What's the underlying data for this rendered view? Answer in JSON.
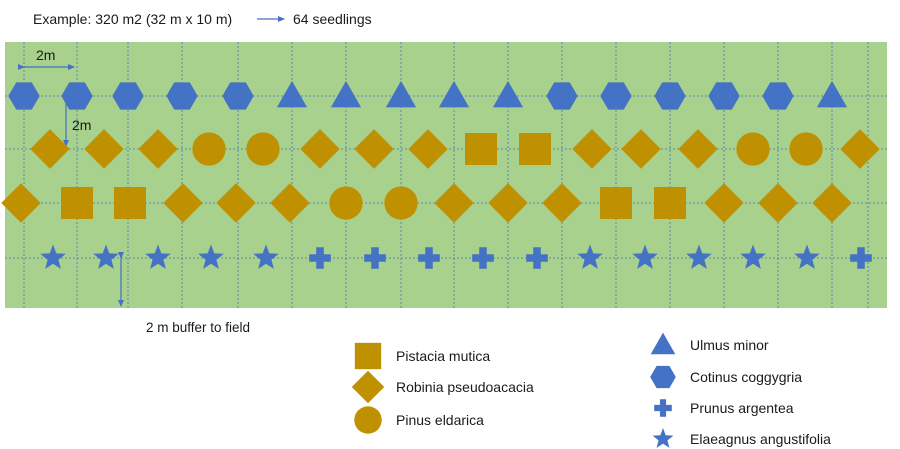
{
  "header": {
    "example_text": "Example: 320 m2 (32 m x 10 m)",
    "result_text": "64 seedlings"
  },
  "annotations": {
    "spacing_h": "2m",
    "spacing_v": "2m",
    "buffer": "2 m buffer to field"
  },
  "colors": {
    "field": "#a9d18e",
    "grid": "#4472c4",
    "blue": "#4472c4",
    "gold": "#bf9000"
  },
  "rows": [
    [
      "hexagon",
      "hexagon",
      "hexagon",
      "hexagon",
      "hexagon",
      "triangle",
      "triangle",
      "triangle",
      "triangle",
      "triangle",
      "hexagon",
      "hexagon",
      "hexagon",
      "hexagon",
      "hexagon",
      "triangle"
    ],
    [
      "diamond",
      "diamond",
      "diamond",
      "circle",
      "circle",
      "diamond",
      "diamond",
      "diamond",
      "square",
      "square",
      "diamond",
      "diamond",
      "diamond",
      "circle",
      "circle",
      "diamond"
    ],
    [
      "diamond",
      "square",
      "square",
      "diamond",
      "diamond",
      "diamond",
      "circle",
      "circle",
      "diamond",
      "diamond",
      "diamond",
      "square",
      "square",
      "diamond",
      "diamond",
      "diamond"
    ],
    [
      "star",
      "star",
      "star",
      "star",
      "star",
      "cross",
      "cross",
      "cross",
      "cross",
      "cross",
      "star",
      "star",
      "star",
      "star",
      "star",
      "cross"
    ]
  ],
  "legend": {
    "left": [
      {
        "shape": "square",
        "label": "Pistacia mutica"
      },
      {
        "shape": "diamond",
        "label": "Robinia pseudoacacia"
      },
      {
        "shape": "circle",
        "label": "Pinus eldarica"
      }
    ],
    "right": [
      {
        "shape": "triangle",
        "label": "Ulmus minor"
      },
      {
        "shape": "hexagon",
        "label": "Cotinus coggygria"
      },
      {
        "shape": "cross",
        "label": "Prunus argentea"
      },
      {
        "shape": "star",
        "label": "Elaeagnus angustifolia"
      }
    ]
  }
}
